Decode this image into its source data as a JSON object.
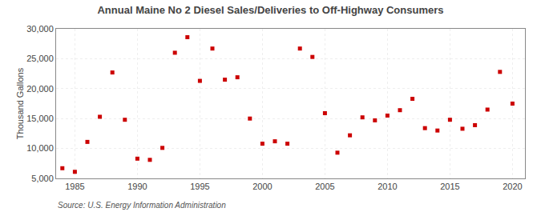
{
  "chart_data": {
    "type": "scatter",
    "title": "Annual Maine No 2 Diesel Sales/Deliveries to Off-Highway Consumers",
    "ylabel": "Thousand Gallons",
    "annotations": [
      "Source: U.S. Energy Information Administration"
    ],
    "x": [
      1984,
      1985,
      1986,
      1987,
      1988,
      1989,
      1990,
      1991,
      1992,
      1993,
      1994,
      1995,
      1996,
      1997,
      1998,
      1999,
      2000,
      2001,
      2002,
      2003,
      2004,
      2005,
      2006,
      2007,
      2008,
      2009,
      2010,
      2011,
      2012,
      2013,
      2014,
      2015,
      2016,
      2017,
      2018,
      2019,
      2020
    ],
    "values": [
      6700,
      6100,
      11100,
      15300,
      22700,
      14800,
      8300,
      8100,
      10100,
      26000,
      28600,
      21300,
      26700,
      21500,
      21900,
      15000,
      10800,
      11200,
      10800,
      26700,
      25300,
      15900,
      9300,
      12200,
      15200,
      14700,
      15500,
      16400,
      18300,
      13400,
      13000,
      14800,
      13300,
      13900,
      16500,
      22800,
      17500
    ],
    "color": "#cc0000",
    "marker": "square",
    "xlim": [
      1983.5,
      2021
    ],
    "ylim": [
      5000,
      30000
    ],
    "xticks": [
      1985,
      1990,
      1995,
      2000,
      2005,
      2010,
      2015,
      2020
    ],
    "yticks": [
      {
        "value": 5000,
        "label": "5,000"
      },
      {
        "value": 10000,
        "label": "10,000"
      },
      {
        "value": 15000,
        "label": "15,000"
      },
      {
        "value": 20000,
        "label": "20,000"
      },
      {
        "value": 25000,
        "label": "25,000"
      },
      {
        "value": 30000,
        "label": "30,000"
      }
    ],
    "grid": true
  }
}
